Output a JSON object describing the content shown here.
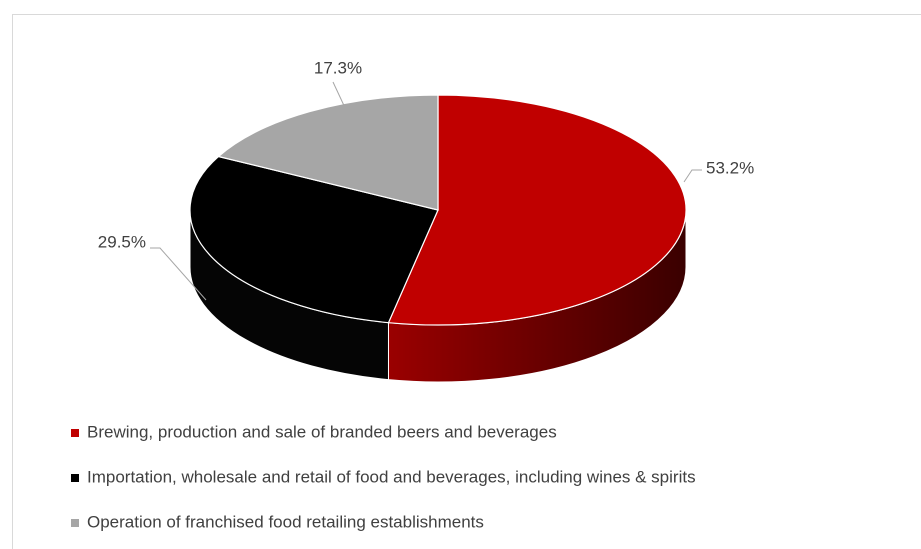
{
  "chart_data": {
    "type": "pie3d",
    "categories": [
      "Brewing, production and sale of branded beers and beverages",
      "Importation, wholesale and retail of food and beverages, including wines & spirits",
      "Operation of franchised food retailing establishments"
    ],
    "values": [
      53.2,
      29.5,
      17.3
    ],
    "value_labels": [
      "53.2%",
      "29.5%",
      "17.3%"
    ],
    "colors": [
      "#c00000",
      "#000000",
      "#a6a6a6"
    ],
    "legend": "bottom"
  }
}
